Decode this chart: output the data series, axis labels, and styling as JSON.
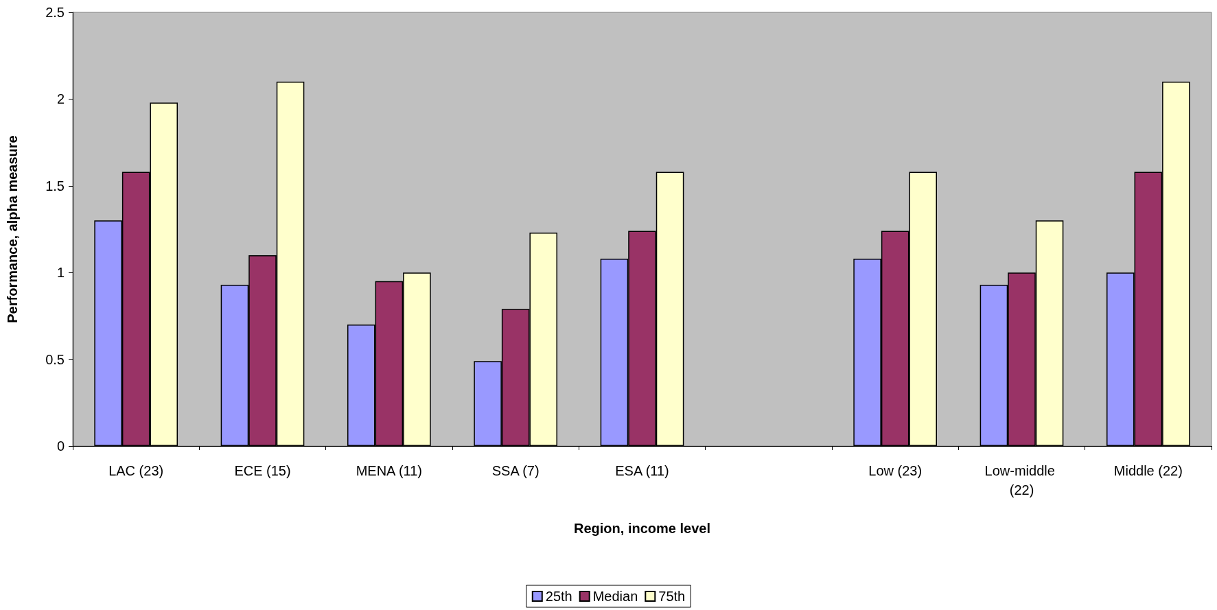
{
  "chart_data": {
    "type": "bar",
    "xlabel": "Region, income level",
    "ylabel": "Performance, alpha measure",
    "categories": [
      "LAC (23)",
      "ECE (15)",
      "MENA (11)",
      "SSA (7)",
      "ESA (11)",
      null,
      "Low (23)",
      "Low-middle (22)",
      "Middle (22)"
    ],
    "series": [
      {
        "name": "25th",
        "color": "#9999ff",
        "values": [
          1.3,
          0.93,
          0.7,
          0.49,
          1.08,
          null,
          1.08,
          0.93,
          1.0
        ]
      },
      {
        "name": "Median",
        "color": "#993366",
        "values": [
          1.58,
          1.1,
          0.95,
          0.79,
          1.24,
          null,
          1.24,
          1.0,
          1.58
        ]
      },
      {
        "name": "75th",
        "color": "#ffffcc",
        "values": [
          1.98,
          2.1,
          1.0,
          1.23,
          1.58,
          null,
          1.58,
          1.3,
          2.1
        ]
      }
    ],
    "ylim": [
      0,
      2.5
    ],
    "yticks": [
      0,
      0.5,
      1,
      1.5,
      2,
      2.5
    ],
    "grid": false,
    "legend": "bottom"
  }
}
